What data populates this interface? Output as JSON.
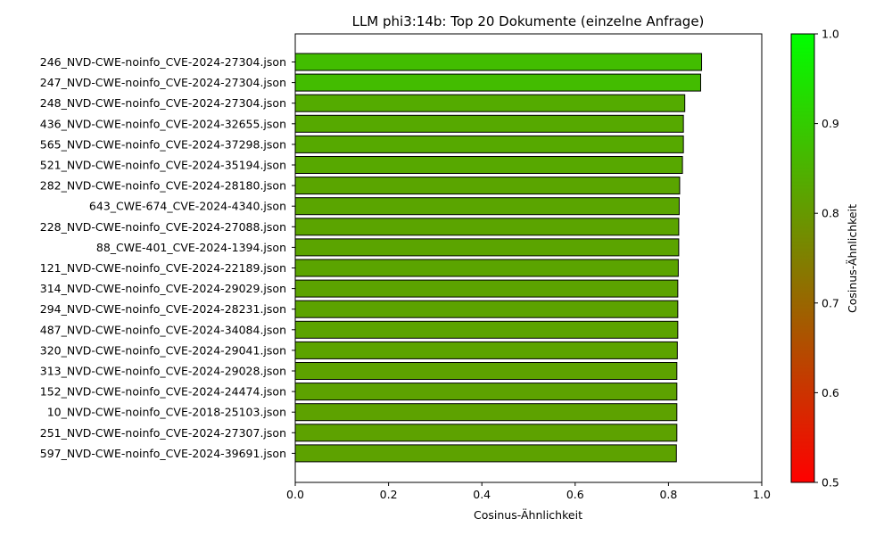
{
  "chart_data": {
    "type": "bar",
    "orientation": "horizontal",
    "title": "LLM phi3:14b: Top 20 Dokumente (einzelne Anfrage)",
    "xlabel": "Cosinus-Ähnlichkeit",
    "ylabel": "",
    "xlim": [
      0.0,
      1.0
    ],
    "xticks": [
      "0.0",
      "0.2",
      "0.4",
      "0.6",
      "0.8",
      "1.0"
    ],
    "grid": false,
    "legend": "none",
    "categories": [
      "246_NVD-CWE-noinfo_CVE-2024-27304.json",
      "247_NVD-CWE-noinfo_CVE-2024-27304.json",
      "248_NVD-CWE-noinfo_CVE-2024-27304.json",
      "436_NVD-CWE-noinfo_CVE-2024-32655.json",
      "565_NVD-CWE-noinfo_CVE-2024-37298.json",
      "521_NVD-CWE-noinfo_CVE-2024-35194.json",
      "282_NVD-CWE-noinfo_CVE-2024-28180.json",
      "643_CWE-674_CVE-2024-4340.json",
      "228_NVD-CWE-noinfo_CVE-2024-27088.json",
      "88_CWE-401_CVE-2024-1394.json",
      "121_NVD-CWE-noinfo_CVE-2024-22189.json",
      "314_NVD-CWE-noinfo_CVE-2024-29029.json",
      "294_NVD-CWE-noinfo_CVE-2024-28231.json",
      "487_NVD-CWE-noinfo_CVE-2024-34084.json",
      "320_NVD-CWE-noinfo_CVE-2024-29041.json",
      "313_NVD-CWE-noinfo_CVE-2024-29028.json",
      "152_NVD-CWE-noinfo_CVE-2024-24474.json",
      "10_NVD-CWE-noinfo_CVE-2018-25103.json",
      "251_NVD-CWE-noinfo_CVE-2024-27307.json",
      "597_NVD-CWE-noinfo_CVE-2024-39691.json"
    ],
    "values": [
      0.871,
      0.869,
      0.835,
      0.832,
      0.832,
      0.83,
      0.824,
      0.823,
      0.822,
      0.822,
      0.821,
      0.82,
      0.82,
      0.82,
      0.819,
      0.818,
      0.818,
      0.818,
      0.818,
      0.817
    ],
    "colorbar": {
      "label": "Cosinus-Ähnlichkeit",
      "range": [
        0.5,
        1.0
      ],
      "ticks": [
        "0.5",
        "0.6",
        "0.7",
        "0.8",
        "0.9",
        "1.0"
      ],
      "color_low": "#ff0000",
      "color_high": "#00ff00"
    }
  }
}
